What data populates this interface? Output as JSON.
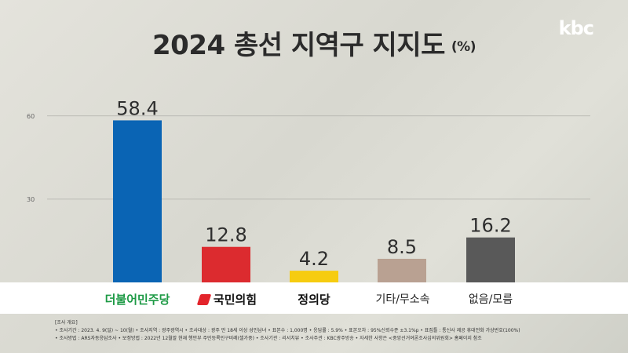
{
  "header": {
    "title": "2024 총선 지역구 지지도",
    "unit": "(%)",
    "logo": "kbc"
  },
  "chart_data": {
    "type": "bar",
    "categories": [
      "더불어민주당",
      "국민의힘",
      "정의당",
      "기타/무소속",
      "없음/모름"
    ],
    "values": [
      58.4,
      12.8,
      4.2,
      8.5,
      16.2
    ],
    "value_labels": [
      "58.4",
      "12.8",
      "4.2",
      "8.5",
      "16.2"
    ],
    "colors": [
      "#0a64b4",
      "#dc2b2f",
      "#f6cc10",
      "#b9a192",
      "#595959"
    ],
    "ylim": [
      0,
      68
    ],
    "yticks": [
      30,
      60
    ],
    "ytick_labels": [
      "30",
      "60"
    ],
    "grid": true,
    "legend": "none"
  },
  "notes": {
    "heading": "[조사 개요]",
    "line1": "• 조사기간 : 2023. 4. 9(일) ~ 10(월)  • 조사지역 : 광주광역시  • 조사대상 : 광주 만 18세 이상 성인남녀  • 표본수 : 1,000명  • 응답률 : 5.9%  • 표본오차 : 95%신뢰수준 ±3.1%p  • 표집틀 : 통신사 제공 휴대전화 가상번호(100%)",
    "line2": "• 조사방법 : ARS자동응답조사  • 보정방법 : 2022년 12월말 현재 행안부 주민등록인구비례(셀가중)  • 조사기관 : 리서치뷰  • 조사주관 : KBC광주방송  • 자세한 사항은 <중앙선거여론조사심의위원회> 홈페이지 참조"
  }
}
